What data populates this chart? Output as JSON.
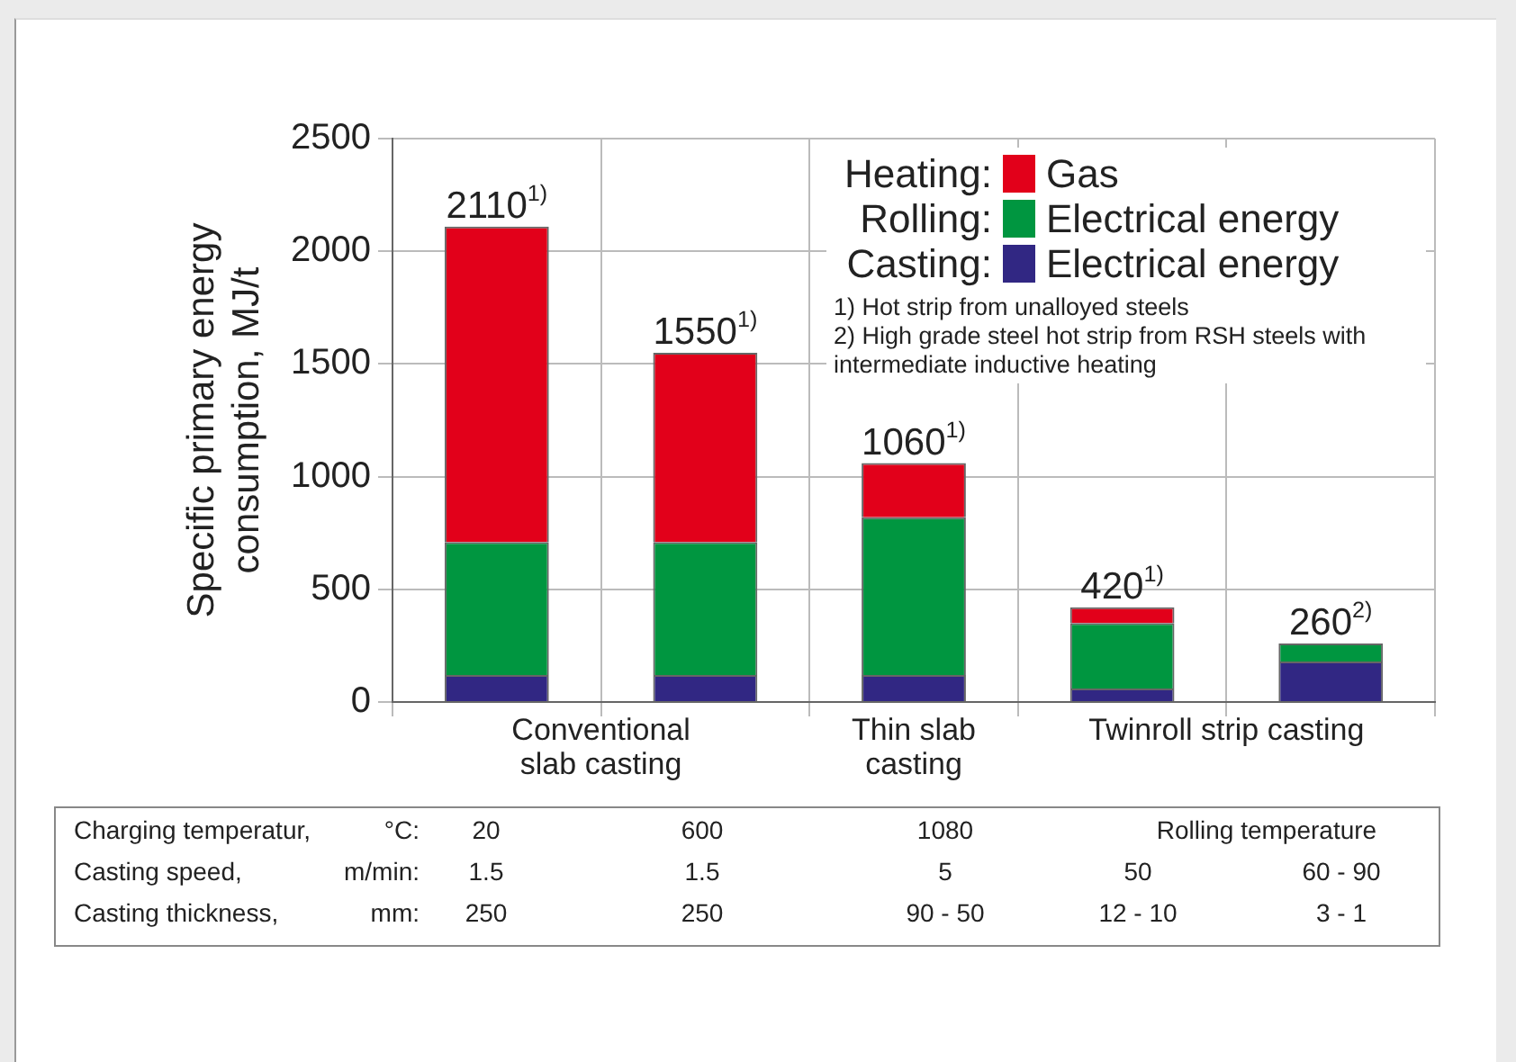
{
  "chart_data": {
    "type": "bar",
    "stacked": true,
    "ylabel": "Specific primary energy consumption, MJ/t",
    "categories": [
      null,
      null,
      null,
      null,
      null
    ],
    "series": [
      {
        "name": "Electrical energy",
        "color": "#312783",
        "values": [
          120,
          120,
          120,
          60,
          180
        ]
      },
      {
        "name": "Electrical energy",
        "color": "#009640",
        "values": [
          590,
          590,
          700,
          290,
          80
        ]
      },
      {
        "name": "Gas",
        "color": "#e2001a",
        "values": [
          1400,
          840,
          240,
          70,
          null
        ]
      }
    ],
    "totals": [
      "2110$^{1)}$",
      "1550$^{1)}$",
      "1060$^{1)}$",
      "420$^{1)}$",
      "260$^{2)}$"
    ],
    "ylim": [
      0,
      2500
    ],
    "yticks": [
      0,
      500,
      1000,
      1500,
      2000,
      2500
    ],
    "grid": true,
    "legend": "top right",
    "annotations": [
      "Conventional slab casting",
      "Thin slab casting",
      "Twinroll strip casting",
      "1) Hot strip from unalloyed steels",
      "2) High grade steel hot strip from RSH steels with intermediate inductive heating",
      "Charging temperatur,",
      "°C:",
      "20",
      "600",
      "1080",
      "Rolling temperature",
      "Casting speed,",
      "m/min:",
      "1.5",
      "1.5",
      "5",
      "50",
      "60 - 90",
      "Casting thickness,",
      "mm:",
      "250",
      "250",
      "90 - 50",
      "12 - 10",
      "3 - 1",
      "Heating:",
      "Rolling:",
      "Casting:"
    ]
  }
}
